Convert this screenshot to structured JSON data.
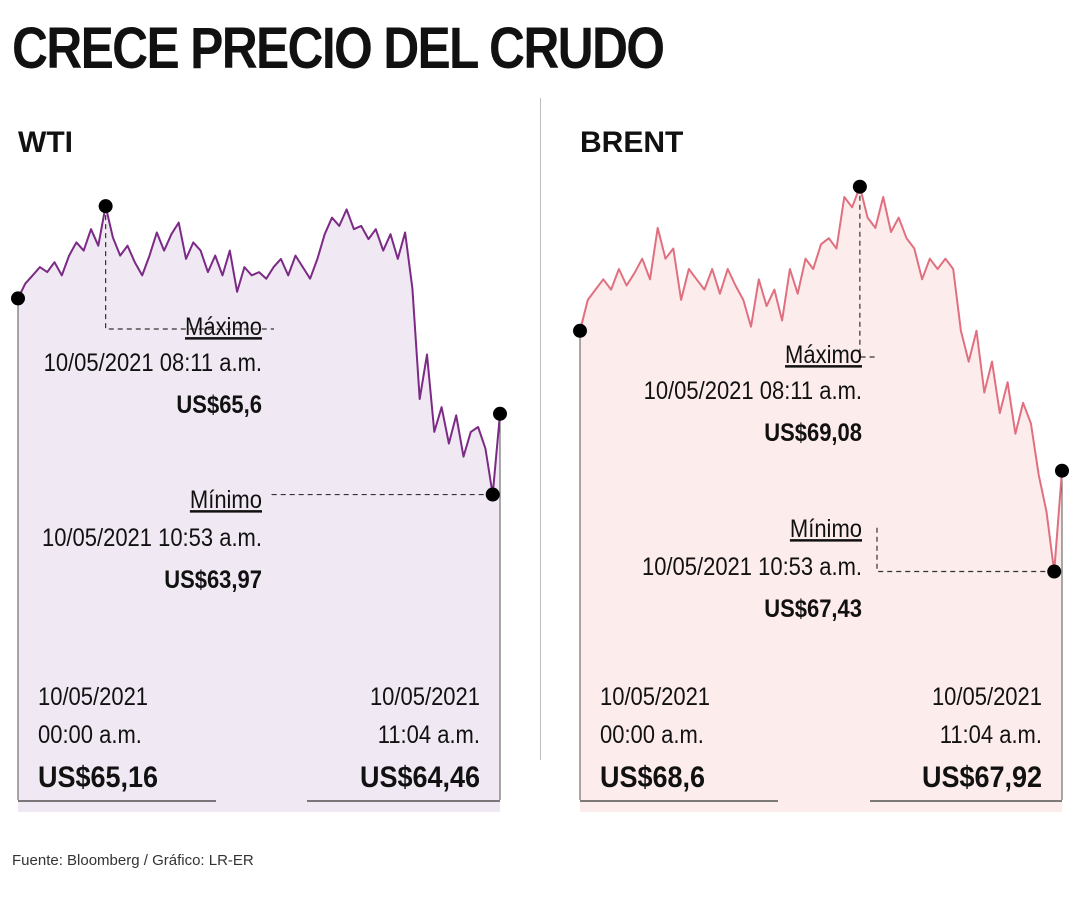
{
  "title": "CRECE PRECIO DEL CRUDO",
  "source": "Fuente: Bloomberg / Gráfico: LR-ER",
  "colors": {
    "wti_line": "#7b2a85",
    "wti_fill": "#f0e8f3",
    "brent_line": "#e0707f",
    "brent_fill": "#fdecec",
    "marker": "#000000",
    "divider": "#bdbdbd"
  },
  "chart_data": [
    {
      "type": "line",
      "title": "WTI",
      "ylim": [
        63.5,
        66.0
      ],
      "x_range": [
        "10/05/2021 00:00 a.m.",
        "10/05/2021 11:04 a.m."
      ],
      "series": [
        {
          "values": [
            65.16,
            65.25,
            65.3,
            65.35,
            65.32,
            65.38,
            65.3,
            65.42,
            65.5,
            65.45,
            65.58,
            65.48,
            65.72,
            65.53,
            65.42,
            65.48,
            65.38,
            65.3,
            65.42,
            65.56,
            65.45,
            65.55,
            65.62,
            65.4,
            65.5,
            65.45,
            65.32,
            65.42,
            65.3,
            65.45,
            65.2,
            65.35,
            65.3,
            65.32,
            65.28,
            65.35,
            65.4,
            65.3,
            65.42,
            65.35,
            65.28,
            65.4,
            65.55,
            65.65,
            65.6,
            65.7,
            65.58,
            65.6,
            65.52,
            65.58,
            65.45,
            65.55,
            65.4,
            65.56,
            65.22,
            64.55,
            64.82,
            64.35,
            64.5,
            64.28,
            64.45,
            64.2,
            64.35,
            64.38,
            64.25,
            63.97,
            64.46
          ]
        }
      ],
      "annotations": {
        "max": {
          "label": "Máximo",
          "time": "10/05/2021 08:11 a.m.",
          "value_text": "US$65,6",
          "value": 65.6
        },
        "min": {
          "label": "Mínimo",
          "time": "10/05/2021 10:53 a.m.",
          "value_text": "US$63,97",
          "value": 63.97
        },
        "start": {
          "date": "10/05/2021",
          "time": "00:00 a.m.",
          "value_text": "US$65,16",
          "value": 65.16
        },
        "end": {
          "date": "10/05/2021",
          "time": "11:04 a.m.",
          "value_text": "US$64,46",
          "value": 64.46
        }
      }
    },
    {
      "type": "line",
      "title": "BRENT",
      "ylim": [
        67.0,
        69.6
      ],
      "x_range": [
        "10/05/2021 00:00 a.m.",
        "10/05/2021 11:04 a.m."
      ],
      "series": [
        {
          "values": [
            68.6,
            68.75,
            68.8,
            68.85,
            68.8,
            68.9,
            68.82,
            68.88,
            68.95,
            68.85,
            69.1,
            68.95,
            69.0,
            68.75,
            68.9,
            68.85,
            68.8,
            68.9,
            68.78,
            68.9,
            68.82,
            68.75,
            68.62,
            68.85,
            68.72,
            68.8,
            68.65,
            68.9,
            68.78,
            68.95,
            68.9,
            69.02,
            69.05,
            69.0,
            69.25,
            69.2,
            69.3,
            69.15,
            69.1,
            69.25,
            69.08,
            69.15,
            69.05,
            69.0,
            68.85,
            68.95,
            68.9,
            68.95,
            68.9,
            68.6,
            68.45,
            68.6,
            68.3,
            68.45,
            68.2,
            68.35,
            68.1,
            68.25,
            68.15,
            67.9,
            67.72,
            67.43,
            67.92
          ]
        }
      ],
      "annotations": {
        "max": {
          "label": "Máximo",
          "time": "10/05/2021 08:11 a.m.",
          "value_text": "US$69,08",
          "value": 69.08
        },
        "min": {
          "label": "Mínimo",
          "time": "10/05/2021 10:53 a.m.",
          "value_text": "US$67,43",
          "value": 67.43
        },
        "start": {
          "date": "10/05/2021",
          "time": "00:00 a.m.",
          "value_text": "US$68,6",
          "value": 68.6
        },
        "end": {
          "date": "10/05/2021",
          "time": "11:04 a.m.",
          "value_text": "US$67,92",
          "value": 67.92
        }
      }
    }
  ]
}
